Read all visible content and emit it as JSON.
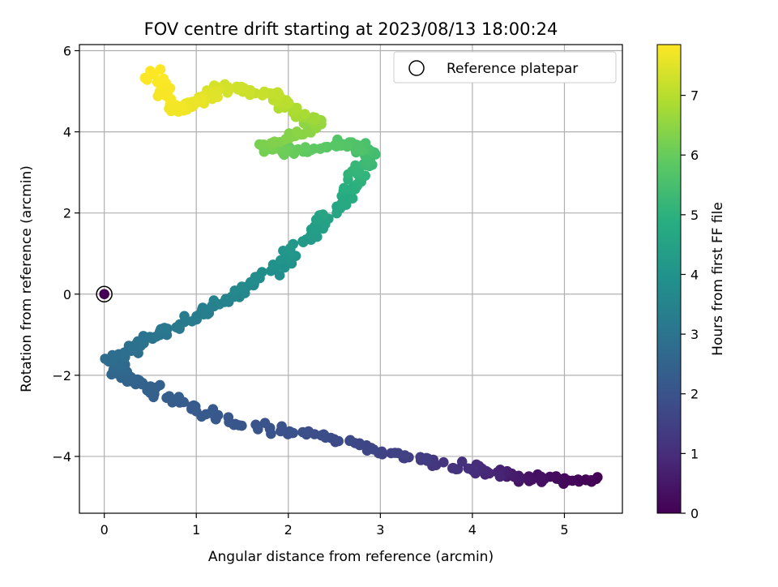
{
  "chart_data": {
    "type": "scatter",
    "title": "FOV centre drift starting at 2023/08/13 18:00:24",
    "xlabel": "Angular distance from reference (arcmin)",
    "ylabel": "Rotation from reference (arcmin)",
    "xlim": [
      -0.27,
      5.63
    ],
    "ylim": [
      -5.4,
      6.15
    ],
    "x_ticks": [
      0,
      1,
      2,
      3,
      4,
      5
    ],
    "y_ticks": [
      -4,
      -2,
      0,
      2,
      4,
      6
    ],
    "grid": true,
    "legend": {
      "placement": "top-right",
      "entries": [
        "Reference platepar"
      ]
    },
    "colorbar": {
      "label": "Hours from first FF file",
      "colormap": "viridis",
      "range": [
        0,
        7.85
      ],
      "ticks": [
        0,
        1,
        2,
        3,
        4,
        5,
        6,
        7
      ]
    },
    "reference_point": {
      "x": 0,
      "y": 0
    },
    "track_vertices": [
      [
        5.35,
        -4.6,
        0.0
      ],
      [
        4.6,
        -4.55,
        0.4
      ],
      [
        4.1,
        -4.35,
        0.9
      ],
      [
        3.4,
        -4.05,
        1.4
      ],
      [
        2.5,
        -3.6,
        1.8
      ],
      [
        1.4,
        -3.15,
        2.1
      ],
      [
        0.6,
        -2.45,
        2.35
      ],
      [
        0.2,
        -2.0,
        2.55
      ],
      [
        0.1,
        -1.6,
        2.75
      ],
      [
        0.5,
        -1.1,
        3.0
      ],
      [
        1.2,
        -0.3,
        3.4
      ],
      [
        1.8,
        0.5,
        3.85
      ],
      [
        2.3,
        1.6,
        4.35
      ],
      [
        2.7,
        2.6,
        4.9
      ],
      [
        2.9,
        3.4,
        5.35
      ],
      [
        2.7,
        3.7,
        5.65
      ],
      [
        2.0,
        3.5,
        6.0
      ],
      [
        1.7,
        3.6,
        6.2
      ],
      [
        2.35,
        4.2,
        6.55
      ],
      [
        1.95,
        4.6,
        6.9
      ],
      [
        1.9,
        4.9,
        7.1
      ],
      [
        1.25,
        5.1,
        7.35
      ],
      [
        1.1,
        4.8,
        7.55
      ],
      [
        0.8,
        4.5,
        7.7
      ],
      [
        0.5,
        5.5,
        7.85
      ]
    ],
    "points_per_segment": 24,
    "jitter": 0.09
  }
}
